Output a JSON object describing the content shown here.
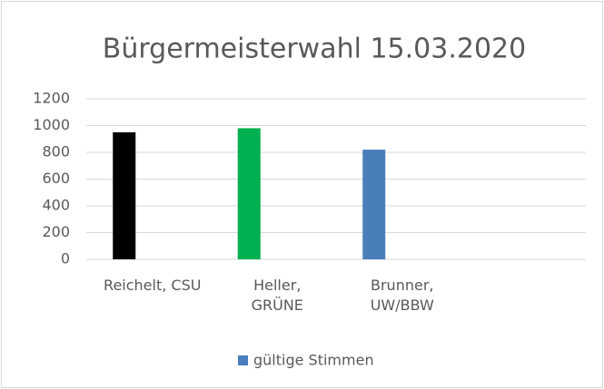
{
  "chart_data": {
    "type": "bar",
    "title": "Bürgermeisterwahl 15.03.2020",
    "categories": [
      "Reichelt, CSU",
      "Heller,\nGRÜNE",
      "Brunner,\nUW/BBW",
      null
    ],
    "series": [
      {
        "name": "gültige Stimmen",
        "color": "#4a7ebb",
        "point_colors": [
          "#000000",
          "#00b050",
          "#4a7ebb",
          null
        ],
        "values": [
          950,
          980,
          820,
          null
        ]
      }
    ],
    "ylim": [
      0,
      1200
    ],
    "yticks": [
      0,
      200,
      400,
      600,
      800,
      1000,
      1200
    ],
    "grid": true,
    "legend": "bottom"
  }
}
